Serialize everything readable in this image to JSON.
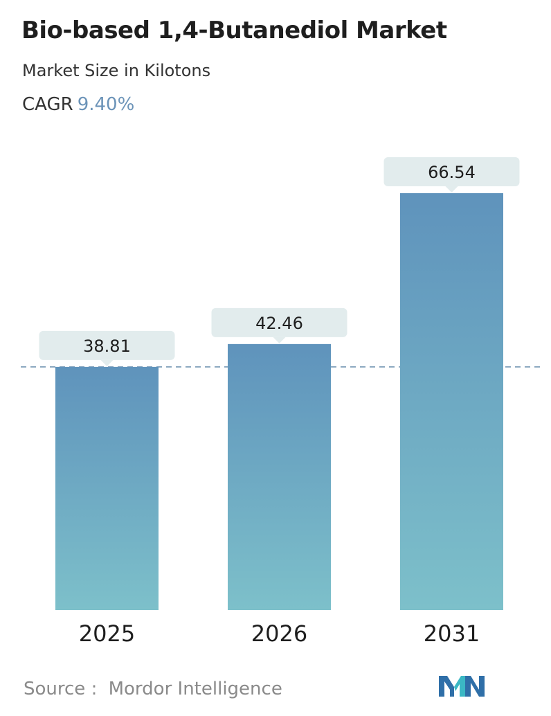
{
  "header": {
    "title": "Bio-based 1,4-Butanediol Market",
    "subtitle": "Market Size in Kilotons",
    "cagr_label": "CAGR",
    "cagr_value": "9.40%"
  },
  "footer": {
    "source_label": "Source :",
    "source_name": "Mordor Intelligence",
    "logo_icon": "mordor-intelligence-logo-icon"
  },
  "colors": {
    "bar_top": "#5f93bc",
    "bar_bottom": "#7dc0ca",
    "label_box": "#e2eced",
    "cagr_value": "#6b93b8",
    "reference_line": "#6b8fae"
  },
  "chart_data": {
    "type": "bar",
    "categories": [
      "2025",
      "2026",
      "2031"
    ],
    "values": [
      38.81,
      42.46,
      66.54
    ],
    "value_labels": [
      "38.81",
      "42.46",
      "66.54"
    ],
    "ylim": [
      0,
      66.54
    ],
    "reference_line_value": 38.81,
    "grid": false,
    "legend": "none"
  }
}
